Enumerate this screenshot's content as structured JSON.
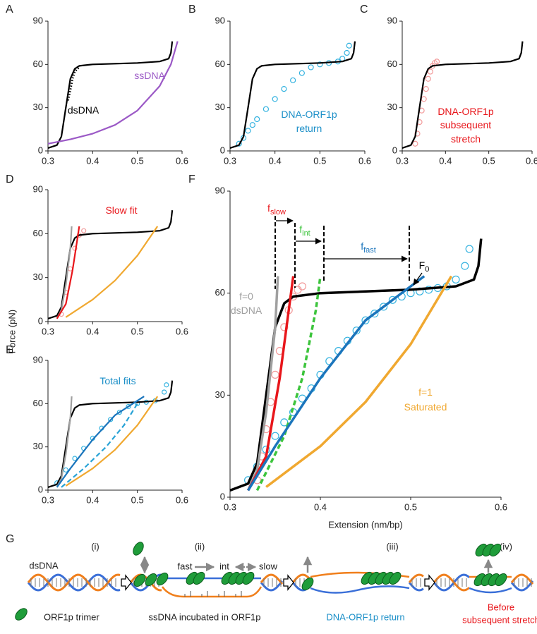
{
  "figure": {
    "ylabel": "Force (pN)",
    "xlabel": "Extension (nm/bp)"
  },
  "chart_data": [
    {
      "panel": "A",
      "type": "line",
      "xlim": [
        0.3,
        0.6
      ],
      "ylim": [
        0,
        90
      ],
      "xticks": [
        0.3,
        0.4,
        0.5,
        0.6
      ],
      "yticks": [
        0,
        30,
        60,
        90
      ],
      "series": [
        {
          "color": "#000000",
          "style": "solid",
          "x": [
            0.3,
            0.32,
            0.33,
            0.34,
            0.35,
            0.36,
            0.37,
            0.4,
            0.45,
            0.5,
            0.55,
            0.57,
            0.575,
            0.578
          ],
          "values": [
            2,
            4,
            10,
            30,
            50,
            57,
            59,
            60,
            60.5,
            61,
            62,
            64,
            68,
            76
          ]
        },
        {
          "color": "#000000",
          "style": "dotted",
          "x": [
            0.345,
            0.35,
            0.355,
            0.36,
            0.37
          ],
          "values": [
            35,
            42,
            50,
            55,
            58
          ]
        },
        {
          "color": "#9b59c6",
          "style": "solid",
          "x": [
            0.3,
            0.35,
            0.4,
            0.45,
            0.5,
            0.55,
            0.575,
            0.59
          ],
          "values": [
            5,
            8,
            12,
            18,
            28,
            45,
            60,
            76
          ]
        }
      ],
      "annotations": [
        {
          "text": "ssDNA",
          "color": "#9b59c6"
        },
        {
          "text": "dsDNA",
          "color": "#000000"
        }
      ]
    },
    {
      "panel": "B",
      "type": "line",
      "xlim": [
        0.3,
        0.6
      ],
      "ylim": [
        0,
        90
      ],
      "xticks": [
        0.3,
        0.4,
        0.5,
        0.6
      ],
      "yticks": [
        0,
        30,
        60,
        90
      ],
      "series": [
        {
          "color": "#000000",
          "style": "solid",
          "x": [
            0.3,
            0.32,
            0.33,
            0.34,
            0.35,
            0.36,
            0.37,
            0.4,
            0.45,
            0.5,
            0.55,
            0.57,
            0.575,
            0.578
          ],
          "values": [
            2,
            4,
            10,
            30,
            50,
            57,
            59,
            60,
            60.5,
            61,
            62,
            64,
            68,
            76
          ]
        },
        {
          "color": "#35b3e0",
          "style": "circles",
          "x": [
            0.32,
            0.33,
            0.34,
            0.35,
            0.36,
            0.38,
            0.4,
            0.42,
            0.44,
            0.46,
            0.48,
            0.5,
            0.52,
            0.54,
            0.55,
            0.56,
            0.565
          ],
          "values": [
            5,
            9,
            14,
            18,
            22,
            29,
            36,
            43,
            49,
            54,
            58,
            60,
            61,
            62,
            64,
            68,
            73
          ]
        }
      ],
      "annotations": [
        {
          "text": "DNA-ORF1p",
          "color": "#1b8fc8"
        },
        {
          "text": "return",
          "color": "#1b8fc8"
        }
      ]
    },
    {
      "panel": "C",
      "type": "line",
      "xlim": [
        0.3,
        0.6
      ],
      "ylim": [
        0,
        90
      ],
      "xticks": [
        0.3,
        0.4,
        0.5,
        0.6
      ],
      "yticks": [
        0,
        30,
        60,
        90
      ],
      "series": [
        {
          "color": "#000000",
          "style": "solid",
          "x": [
            0.3,
            0.32,
            0.33,
            0.34,
            0.35,
            0.36,
            0.37,
            0.4,
            0.45,
            0.5,
            0.55,
            0.57,
            0.575,
            0.578
          ],
          "values": [
            2,
            4,
            10,
            30,
            50,
            57,
            59,
            60,
            60.5,
            61,
            62,
            64,
            68,
            76
          ]
        },
        {
          "color": "#f29a9a",
          "style": "circles",
          "x": [
            0.33,
            0.335,
            0.34,
            0.345,
            0.35,
            0.355,
            0.36,
            0.365,
            0.37,
            0.375,
            0.38
          ],
          "values": [
            5,
            12,
            20,
            28,
            36,
            43,
            50,
            55,
            59,
            61,
            62
          ]
        }
      ],
      "annotations": [
        {
          "text": "DNA-ORF1p",
          "color": "#e8161b"
        },
        {
          "text": "subsequent",
          "color": "#e8161b"
        },
        {
          "text": "stretch",
          "color": "#e8161b"
        }
      ]
    },
    {
      "panel": "D",
      "type": "line",
      "xlim": [
        0.3,
        0.6
      ],
      "ylim": [
        0,
        90
      ],
      "xticks": [
        0.3,
        0.4,
        0.5,
        0.6
      ],
      "yticks": [
        0,
        30,
        60,
        90
      ],
      "series": [
        {
          "color": "#000000",
          "style": "solid",
          "x": [
            0.3,
            0.32,
            0.33,
            0.34,
            0.35,
            0.36,
            0.37,
            0.4,
            0.45,
            0.5,
            0.55,
            0.57,
            0.575,
            0.578
          ],
          "values": [
            2,
            4,
            10,
            30,
            50,
            57,
            59,
            60,
            60.5,
            61,
            62,
            64,
            68,
            76
          ]
        },
        {
          "color": "#f29a9a",
          "style": "circles",
          "x": [
            0.33,
            0.34,
            0.35,
            0.36,
            0.37,
            0.38
          ],
          "values": [
            5,
            20,
            36,
            50,
            59,
            62
          ]
        },
        {
          "color": "#a0a0a0",
          "style": "solid",
          "x": [
            0.32,
            0.33,
            0.34,
            0.35,
            0.353
          ],
          "values": [
            2,
            8,
            25,
            50,
            65
          ]
        },
        {
          "color": "#e8161b",
          "style": "solid",
          "x": [
            0.32,
            0.34,
            0.355,
            0.365,
            0.37
          ],
          "values": [
            2,
            12,
            35,
            55,
            65
          ]
        },
        {
          "color": "#f0a830",
          "style": "solid",
          "x": [
            0.34,
            0.4,
            0.45,
            0.5,
            0.545
          ],
          "values": [
            3,
            15,
            28,
            45,
            65
          ]
        }
      ],
      "annotations": [
        {
          "text": "Slow fit",
          "color": "#e8161b"
        }
      ]
    },
    {
      "panel": "E",
      "type": "line",
      "xlim": [
        0.3,
        0.6
      ],
      "ylim": [
        0,
        90
      ],
      "xticks": [
        0.3,
        0.4,
        0.5,
        0.6
      ],
      "yticks": [
        0,
        30,
        60,
        90
      ],
      "series": [
        {
          "color": "#000000",
          "style": "solid",
          "x": [
            0.3,
            0.32,
            0.33,
            0.34,
            0.35,
            0.36,
            0.37,
            0.4,
            0.45,
            0.5,
            0.55,
            0.57,
            0.575,
            0.578
          ],
          "values": [
            2,
            4,
            10,
            30,
            50,
            57,
            59,
            60,
            60.5,
            61,
            62,
            64,
            68,
            76
          ]
        },
        {
          "color": "#35b3e0",
          "style": "circles",
          "x": [
            0.32,
            0.34,
            0.36,
            0.38,
            0.4,
            0.42,
            0.44,
            0.46,
            0.48,
            0.5,
            0.52,
            0.54,
            0.56,
            0.565
          ],
          "values": [
            5,
            14,
            22,
            29,
            36,
            43,
            49,
            54,
            58,
            60,
            61,
            62,
            68,
            73
          ]
        },
        {
          "color": "#a0a0a0",
          "style": "solid",
          "x": [
            0.32,
            0.33,
            0.34,
            0.35,
            0.353
          ],
          "values": [
            2,
            8,
            25,
            50,
            65
          ]
        },
        {
          "color": "#1b75bc",
          "style": "solid",
          "x": [
            0.32,
            0.35,
            0.4,
            0.45,
            0.5,
            0.515
          ],
          "values": [
            2,
            15,
            35,
            52,
            62,
            65
          ]
        },
        {
          "color": "#29a3d6",
          "style": "dashed",
          "x": [
            0.33,
            0.38,
            0.43,
            0.47,
            0.5
          ],
          "values": [
            2,
            15,
            30,
            45,
            60
          ]
        },
        {
          "color": "#f0a830",
          "style": "solid",
          "x": [
            0.34,
            0.4,
            0.45,
            0.5,
            0.545
          ],
          "values": [
            3,
            15,
            28,
            45,
            65
          ]
        }
      ],
      "annotations": [
        {
          "text": "Total fits",
          "color": "#1b8fc8"
        }
      ]
    },
    {
      "panel": "F",
      "type": "line",
      "xlim": [
        0.3,
        0.6
      ],
      "ylim": [
        0,
        90
      ],
      "xticks": [
        0.3,
        0.4,
        0.5,
        0.6
      ],
      "yticks": [
        0,
        30,
        60,
        90
      ],
      "series": [
        {
          "color": "#000000",
          "style": "solid",
          "x": [
            0.3,
            0.32,
            0.33,
            0.34,
            0.35,
            0.36,
            0.37,
            0.4,
            0.45,
            0.5,
            0.55,
            0.57,
            0.575,
            0.578
          ],
          "values": [
            2,
            4,
            10,
            30,
            50,
            57,
            59,
            60,
            60.5,
            61,
            62,
            64,
            68,
            76
          ]
        },
        {
          "color": "#35b3e0",
          "style": "circles",
          "x": [
            0.32,
            0.33,
            0.34,
            0.35,
            0.36,
            0.37,
            0.38,
            0.39,
            0.4,
            0.41,
            0.42,
            0.43,
            0.44,
            0.45,
            0.46,
            0.47,
            0.48,
            0.49,
            0.5,
            0.51,
            0.52,
            0.53,
            0.54,
            0.55,
            0.56,
            0.565
          ],
          "values": [
            5,
            9,
            14,
            18,
            22,
            25,
            29,
            32,
            36,
            40,
            43,
            46,
            49,
            52,
            54,
            56,
            58,
            59,
            60,
            60.5,
            61,
            61.5,
            62,
            64,
            68,
            73
          ]
        },
        {
          "color": "#f29a9a",
          "style": "circles",
          "x": [
            0.33,
            0.335,
            0.34,
            0.345,
            0.35,
            0.355,
            0.36,
            0.365,
            0.37,
            0.375,
            0.38
          ],
          "values": [
            5,
            12,
            20,
            28,
            36,
            43,
            50,
            55,
            59,
            61,
            62
          ]
        },
        {
          "color": "#a0a0a0",
          "style": "solid",
          "x": [
            0.32,
            0.33,
            0.34,
            0.35,
            0.353
          ],
          "values": [
            2,
            8,
            25,
            50,
            65
          ]
        },
        {
          "color": "#e8161b",
          "style": "solid",
          "x": [
            0.32,
            0.34,
            0.355,
            0.365,
            0.37
          ],
          "values": [
            2,
            12,
            35,
            55,
            65
          ]
        },
        {
          "color": "#3cc43c",
          "style": "dashed",
          "x": [
            0.33,
            0.36,
            0.38,
            0.395,
            0.4
          ],
          "values": [
            2,
            18,
            35,
            55,
            65
          ]
        },
        {
          "color": "#1b75bc",
          "style": "solid",
          "x": [
            0.32,
            0.35,
            0.4,
            0.45,
            0.5,
            0.515
          ],
          "values": [
            2,
            15,
            35,
            52,
            62,
            65
          ]
        },
        {
          "color": "#f0a830",
          "style": "solid",
          "x": [
            0.34,
            0.4,
            0.45,
            0.5,
            0.545
          ],
          "values": [
            3,
            15,
            28,
            45,
            65
          ]
        }
      ],
      "annotations": [
        {
          "text": "f",
          "sub": "slow",
          "color": "#e8161b"
        },
        {
          "text": "f",
          "sub": "int",
          "color": "#3cc43c"
        },
        {
          "text": "f",
          "sub": "fast",
          "color": "#1b75bc"
        },
        {
          "text": "F",
          "sub": "0",
          "color": "#000000"
        },
        {
          "text": "f=0",
          "color": "#a0a0a0"
        },
        {
          "text": "dsDNA",
          "color": "#a0a0a0"
        },
        {
          "text": "f=1",
          "color": "#f0a830"
        },
        {
          "text": "Saturated",
          "color": "#f0a830"
        }
      ]
    }
  ],
  "diagram": {
    "panel": "G",
    "steps": [
      "(i)",
      "(ii)",
      "(iii)",
      "(iv)"
    ],
    "dsdna": "dsDNA",
    "rates": [
      "fast",
      "int",
      "slow"
    ],
    "legend": "ORF1p trimer",
    "captions": [
      "ssDNA incubated in ORF1p",
      "DNA-ORF1p return"
    ],
    "before": [
      "Before",
      "subsequent stretch"
    ]
  }
}
